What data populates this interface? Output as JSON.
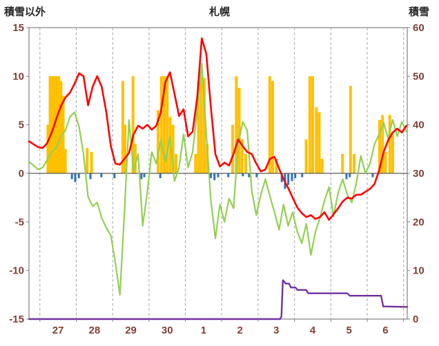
{
  "header": {
    "left_label": "積雪以外",
    "title": "札幌",
    "right_label": "積雪"
  },
  "colors": {
    "red_line": "#ff0000",
    "green_line": "#92d050",
    "orange_bars": "#ffc000",
    "blue_bars": "#2e75b6",
    "purple_line": "#7030a0",
    "grid": "#a6a6a6",
    "border": "#808080",
    "zero_line": "#595959",
    "axis_label": "#7f3f35",
    "title_text": "#262626",
    "background": "#ffffff"
  },
  "chart_data": {
    "type": "composite-timeseries (line + bar)",
    "title": "札幌",
    "x_axis": {
      "domain": [
        0,
        10.4
      ],
      "unit": "day",
      "labels": [
        "27",
        "28",
        "29",
        "30",
        "1",
        "2",
        "3",
        "4",
        "5",
        "6"
      ],
      "label_positions": [
        0.8,
        1.8,
        2.8,
        3.8,
        4.8,
        5.8,
        6.8,
        7.8,
        8.8,
        9.8
      ],
      "gridline_positions": [
        0.3,
        1.3,
        2.3,
        3.3,
        4.3,
        5.3,
        6.3,
        7.3,
        8.3,
        9.3,
        10.3
      ],
      "grid_style": "dashed"
    },
    "left_axis": {
      "label": "積雪以外",
      "min": -15,
      "max": 15,
      "tick_step": 5,
      "ticks": [
        -15,
        -10,
        -5,
        0,
        5,
        10,
        15
      ],
      "tick_labels": [
        "-15",
        "-10",
        "-5",
        "0",
        "5",
        "10",
        "15"
      ]
    },
    "right_axis": {
      "label": "積雪",
      "min": 0,
      "max": 60,
      "tick_step": 10,
      "ticks": [
        0,
        10,
        20,
        30,
        40,
        50,
        60
      ],
      "tick_labels": [
        "0",
        "10",
        "20",
        "30",
        "40",
        "50",
        "60"
      ]
    },
    "series": {
      "red_line": {
        "kind": "line",
        "axis": "left",
        "color_key": "red_line",
        "x_start": 0,
        "x_step": 0.125,
        "values": [
          3.3,
          3.0,
          2.7,
          2.6,
          3.1,
          4.2,
          5.6,
          6.9,
          7.8,
          8.3,
          9.2,
          10.3,
          10.0,
          7.0,
          8.9,
          10.0,
          8.9,
          6.3,
          2.8,
          1.0,
          0.9,
          1.5,
          2.1,
          4.0,
          4.9,
          4.6,
          5.0,
          4.5,
          4.9,
          6.3,
          9.4,
          10.4,
          8.2,
          5.9,
          6.6,
          3.8,
          4.3,
          7.8,
          13.9,
          12.3,
          6.8,
          2.0,
          0.7,
          1.1,
          0.8,
          2.0,
          3.5,
          2.8,
          2.2,
          2.0,
          1.0,
          0.2,
          0.4,
          1.5,
          1.7,
          0.5,
          -0.6,
          -1.5,
          -2.5,
          -3.5,
          -4.1,
          -4.5,
          -4.3,
          -4.7,
          -4.5,
          -4.0,
          -4.8,
          -4.2,
          -3.6,
          -2.9,
          -2.5,
          -2.6,
          -2.2,
          -2.2,
          -1.9,
          -1.6,
          -1.1,
          0.3,
          2.2,
          3.4,
          4.2,
          4.6,
          4.2,
          4.9
        ]
      },
      "green_line": {
        "kind": "line",
        "axis": "left",
        "color_key": "green_line",
        "x_start": 0,
        "x_step": 0.125,
        "values": [
          1.2,
          0.8,
          0.4,
          0.6,
          1.4,
          2.2,
          2.6,
          3.8,
          4.4,
          5.8,
          6.3,
          4.8,
          2.0,
          -2.4,
          -3.4,
          -3.0,
          -4.6,
          -5.6,
          -6.4,
          -9.2,
          -12.5,
          -4.0,
          5.5,
          0.2,
          2.0,
          -5.4,
          -2.0,
          2.2,
          1.0,
          3.4,
          1.2,
          3.8,
          -0.8,
          0.6,
          4.0,
          0.6,
          2.2,
          6.5,
          11.3,
          4.0,
          -2.8,
          -6.7,
          -3.2,
          -5.0,
          -2.6,
          -3.6,
          3.0,
          5.3,
          4.4,
          -1.8,
          -4.3,
          -2.2,
          -0.6,
          -2.4,
          -4.0,
          -5.8,
          -3.2,
          -5.4,
          -4.0,
          -6.0,
          -7.2,
          -5.2,
          -8.4,
          -6.0,
          -4.6,
          -2.8,
          -1.4,
          -4.4,
          -2.0,
          -0.6,
          -2.2,
          -3.0,
          -1.0,
          1.8,
          0.0,
          1.0,
          3.0,
          4.0,
          5.2,
          3.6,
          5.5,
          3.8,
          5.3,
          4.3
        ]
      },
      "orange_bars": {
        "kind": "bar",
        "axis": "left",
        "color_key": "orange_bars",
        "points": [
          [
            0.52,
            5.0
          ],
          [
            0.58,
            10
          ],
          [
            0.64,
            10
          ],
          [
            0.7,
            10
          ],
          [
            0.76,
            10
          ],
          [
            0.82,
            10
          ],
          [
            0.88,
            9.5
          ],
          [
            0.94,
            8.0
          ],
          [
            1.0,
            2.5
          ],
          [
            1.6,
            2.6
          ],
          [
            1.72,
            2.2
          ],
          [
            2.58,
            9.5
          ],
          [
            2.64,
            5.0
          ],
          [
            2.86,
            10
          ],
          [
            2.92,
            3.0
          ],
          [
            3.55,
            6.5
          ],
          [
            3.64,
            10
          ],
          [
            3.72,
            10
          ],
          [
            3.8,
            10
          ],
          [
            3.88,
            5.8
          ],
          [
            3.96,
            5.0
          ],
          [
            4.04,
            2.0
          ],
          [
            4.58,
            2.0
          ],
          [
            4.66,
            9.5
          ],
          [
            4.74,
            10
          ],
          [
            4.82,
            9.8
          ],
          [
            4.9,
            3.0
          ],
          [
            5.6,
            5.0
          ],
          [
            5.7,
            10
          ],
          [
            5.78,
            8.8
          ],
          [
            5.86,
            3.5
          ],
          [
            5.96,
            2.0
          ],
          [
            6.62,
            10
          ],
          [
            6.7,
            9.5
          ],
          [
            6.8,
            1.5
          ],
          [
            7.62,
            3.5
          ],
          [
            7.72,
            10
          ],
          [
            7.8,
            10
          ],
          [
            7.9,
            6.8
          ],
          [
            7.98,
            6.3
          ],
          [
            8.06,
            1.5
          ],
          [
            8.62,
            2.0
          ],
          [
            8.84,
            9.0
          ],
          [
            8.94,
            2.0
          ],
          [
            9.64,
            5.5
          ],
          [
            9.72,
            6.0
          ],
          [
            9.8,
            2.2
          ],
          [
            9.92,
            6.0
          ],
          [
            10.0,
            4.0
          ]
        ]
      },
      "blue_bars": {
        "kind": "bar",
        "axis": "left",
        "color_key": "blue_bars",
        "points": [
          [
            1.18,
            -0.6
          ],
          [
            1.27,
            -0.9
          ],
          [
            1.37,
            -0.5
          ],
          [
            1.69,
            -0.6
          ],
          [
            1.99,
            -0.4
          ],
          [
            2.35,
            -0.5
          ],
          [
            3.09,
            -0.6
          ],
          [
            3.17,
            -0.4
          ],
          [
            3.61,
            -0.5
          ],
          [
            5.0,
            -0.5
          ],
          [
            5.1,
            -0.7
          ],
          [
            5.2,
            -0.4
          ],
          [
            5.48,
            -0.4
          ],
          [
            5.88,
            -0.3
          ],
          [
            6.05,
            -0.4
          ],
          [
            6.26,
            -0.4
          ],
          [
            6.95,
            -0.9
          ],
          [
            7.04,
            -1.6
          ],
          [
            7.13,
            -1.2
          ],
          [
            7.23,
            -0.8
          ],
          [
            7.32,
            -0.5
          ],
          [
            7.51,
            -0.4
          ],
          [
            8.73,
            -0.6
          ],
          [
            8.82,
            -0.4
          ],
          [
            9.45,
            -0.4
          ]
        ]
      },
      "purple_line": {
        "kind": "line",
        "axis": "right",
        "color_key": "purple_line",
        "points": [
          [
            0.0,
            0
          ],
          [
            6.9,
            0
          ],
          [
            6.94,
            0.5
          ],
          [
            6.98,
            8.0
          ],
          [
            7.06,
            7.3
          ],
          [
            7.15,
            7.3
          ],
          [
            7.2,
            6.5
          ],
          [
            7.33,
            6.5
          ],
          [
            7.38,
            6.0
          ],
          [
            7.62,
            6.0
          ],
          [
            7.68,
            5.3
          ],
          [
            8.75,
            5.3
          ],
          [
            8.82,
            4.8
          ],
          [
            9.68,
            4.8
          ],
          [
            9.74,
            2.6
          ],
          [
            10.4,
            2.5
          ]
        ]
      }
    }
  }
}
